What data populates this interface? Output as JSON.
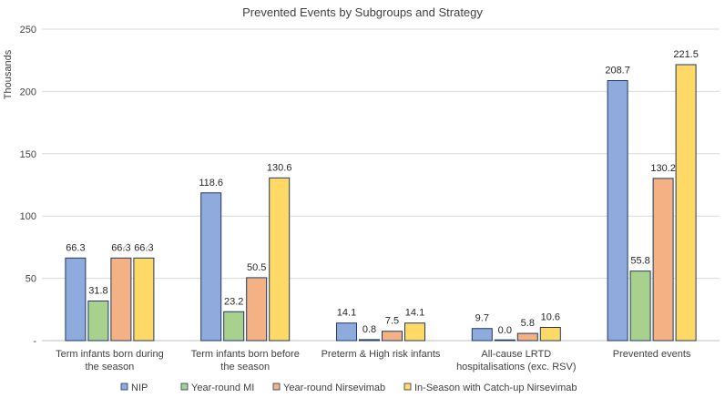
{
  "chart_data": {
    "type": "bar",
    "title": "Prevented Events by Subgroups and Strategy",
    "ylabel": "Thousands",
    "xlabel": "",
    "ylim": [
      0,
      250
    ],
    "yticks": [
      0,
      50,
      100,
      150,
      200,
      250
    ],
    "ytick_labels": [
      "-",
      "50",
      "100",
      "150",
      "200",
      "250"
    ],
    "grid": true,
    "legend_position": "bottom",
    "categories": [
      [
        "Term infants born during",
        "the season"
      ],
      [
        "Term infants born before",
        "the season"
      ],
      [
        "Preterm & High risk infants"
      ],
      [
        "All-cause LRTD",
        "hospitalisations (exc. RSV)"
      ],
      [
        "Prevented events"
      ]
    ],
    "series": [
      {
        "name": "NIP",
        "color": "#8faadc",
        "values": [
          66.3,
          118.6,
          14.1,
          9.7,
          208.7
        ],
        "labels": [
          "66.3",
          "118.6",
          "14.1",
          "9.7",
          "208.7"
        ]
      },
      {
        "name": "Year-round MI",
        "color": "#a9d18e",
        "values": [
          31.8,
          23.2,
          0.8,
          0.0,
          55.8
        ],
        "labels": [
          "31.8",
          "23.2",
          "0.8",
          "0.0",
          "55.8"
        ]
      },
      {
        "name": "Year-round Nirsevimab",
        "color": "#f4b183",
        "values": [
          66.3,
          50.5,
          7.5,
          5.8,
          130.2
        ],
        "labels": [
          "66.3",
          "50.5",
          "7.5",
          "5.8",
          "130.2"
        ]
      },
      {
        "name": "In-Season with Catch-up Nirsevimab",
        "color": "#ffd966",
        "values": [
          66.3,
          130.6,
          14.1,
          10.6,
          221.5
        ],
        "labels": [
          "66.3",
          "130.6",
          "14.1",
          "10.6",
          "221.5"
        ]
      }
    ]
  }
}
